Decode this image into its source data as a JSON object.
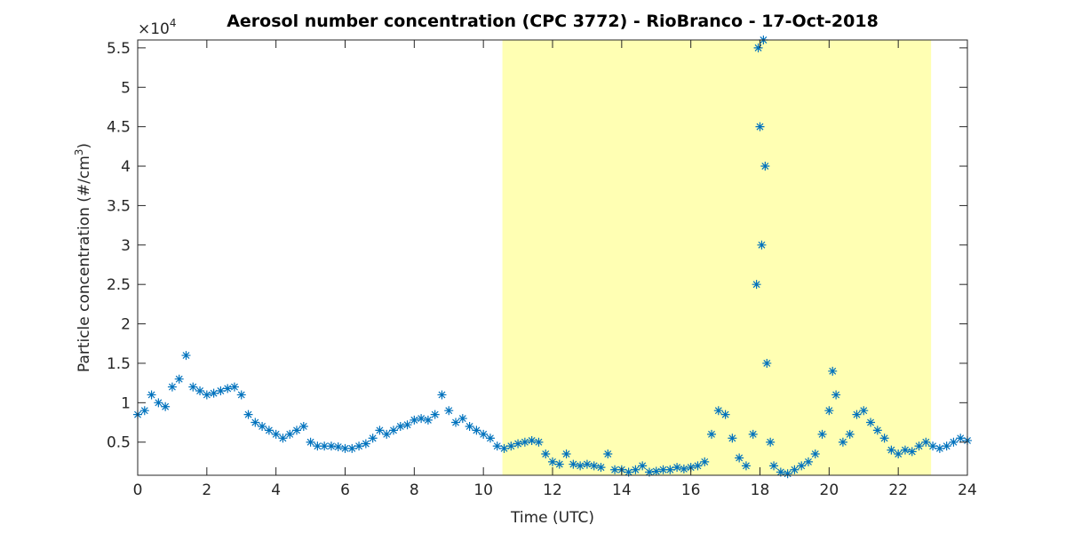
{
  "chart_data": {
    "type": "scatter",
    "title": "Aerosol number concentration (CPC 3772) - RioBranco - 17-Oct-2018",
    "x_label": "Time (UTC)",
    "y_label_parts": [
      "Particle concentration (#/cm",
      "3",
      ")"
    ],
    "y_multiplier_parts": [
      "×10",
      "4"
    ],
    "xlim": [
      0,
      24
    ],
    "xticks": [
      0,
      2,
      4,
      6,
      8,
      10,
      12,
      14,
      16,
      18,
      20,
      22,
      24
    ],
    "ylim": [
      0.08,
      5.6
    ],
    "yticks": [
      0.5,
      1,
      1.5,
      2,
      2.5,
      3,
      3.5,
      4,
      4.5,
      5,
      5.5
    ],
    "shaded_regions": [
      {
        "x": [
          10.55,
          22.95
        ],
        "color": "#ffffb3"
      }
    ],
    "series": [
      {
        "color": "#0072bd",
        "marker": "*",
        "x": [
          0,
          0.2,
          0.4,
          0.6,
          0.8,
          1.0,
          1.2,
          1.4,
          1.6,
          1.8,
          2.0,
          2.2,
          2.4,
          2.6,
          2.8,
          3.0,
          3.2,
          3.4,
          3.6,
          3.8,
          4.0,
          4.2,
          4.4,
          4.6,
          4.8,
          5.0,
          5.2,
          5.4,
          5.6,
          5.8,
          6.0,
          6.2,
          6.4,
          6.6,
          6.8,
          7.0,
          7.2,
          7.4,
          7.6,
          7.8,
          8.0,
          8.2,
          8.4,
          8.6,
          8.8,
          9.0,
          9.2,
          9.4,
          9.6,
          9.8,
          10.0,
          10.2,
          10.4,
          10.6,
          10.8,
          11.0,
          11.2,
          11.4,
          11.6,
          11.8,
          12.0,
          12.2,
          12.4,
          12.6,
          12.8,
          13.0,
          13.2,
          13.4,
          13.6,
          13.8,
          14.0,
          14.2,
          14.4,
          14.6,
          14.8,
          15.0,
          15.2,
          15.4,
          15.6,
          15.8,
          16.0,
          16.2,
          16.4,
          16.6,
          16.8,
          17.0,
          17.2,
          17.4,
          17.6,
          17.8,
          17.9,
          17.95,
          18.0,
          18.05,
          18.1,
          18.15,
          18.2,
          18.3,
          18.4,
          18.6,
          18.8,
          19.0,
          19.2,
          19.4,
          19.6,
          19.8,
          20.0,
          20.1,
          20.2,
          20.4,
          20.6,
          20.8,
          21.0,
          21.2,
          21.4,
          21.6,
          21.8,
          22.0,
          22.2,
          22.4,
          22.6,
          22.8,
          23.0,
          23.2,
          23.4,
          23.6,
          23.8,
          24.0
        ],
        "values": [
          0.85,
          0.9,
          1.1,
          1.0,
          0.95,
          1.2,
          1.3,
          1.6,
          1.2,
          1.15,
          1.1,
          1.12,
          1.15,
          1.18,
          1.2,
          1.1,
          0.85,
          0.75,
          0.7,
          0.65,
          0.6,
          0.55,
          0.6,
          0.65,
          0.7,
          0.5,
          0.45,
          0.45,
          0.45,
          0.44,
          0.42,
          0.42,
          0.45,
          0.48,
          0.55,
          0.65,
          0.6,
          0.65,
          0.7,
          0.72,
          0.78,
          0.8,
          0.78,
          0.85,
          1.1,
          0.9,
          0.75,
          0.8,
          0.7,
          0.65,
          0.6,
          0.55,
          0.45,
          0.42,
          0.45,
          0.48,
          0.5,
          0.52,
          0.5,
          0.35,
          0.25,
          0.22,
          0.35,
          0.22,
          0.2,
          0.22,
          0.2,
          0.18,
          0.35,
          0.15,
          0.15,
          0.12,
          0.15,
          0.2,
          0.12,
          0.13,
          0.15,
          0.15,
          0.18,
          0.16,
          0.18,
          0.2,
          0.25,
          0.6,
          0.9,
          0.85,
          0.55,
          0.3,
          0.2,
          0.6,
          2.5,
          5.5,
          4.5,
          3.0,
          5.6,
          4.0,
          1.5,
          0.5,
          0.2,
          0.12,
          0.1,
          0.15,
          0.2,
          0.25,
          0.35,
          0.6,
          0.9,
          1.4,
          1.1,
          0.5,
          0.6,
          0.85,
          0.9,
          0.75,
          0.65,
          0.55,
          0.4,
          0.35,
          0.4,
          0.38,
          0.45,
          0.5,
          0.45,
          0.42,
          0.45,
          0.5,
          0.55,
          0.52
        ]
      }
    ]
  }
}
